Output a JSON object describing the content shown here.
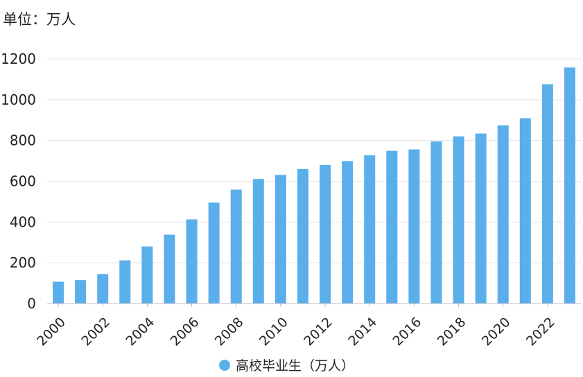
{
  "unit_label": "单位：万人",
  "chart_data": {
    "type": "bar",
    "categories": [
      "2000",
      "2001",
      "2002",
      "2003",
      "2004",
      "2005",
      "2006",
      "2007",
      "2008",
      "2009",
      "2010",
      "2011",
      "2012",
      "2013",
      "2014",
      "2015",
      "2016",
      "2017",
      "2018",
      "2019",
      "2020",
      "2021",
      "2022",
      "2023"
    ],
    "x_tick_labels": [
      "2000",
      "2002",
      "2004",
      "2006",
      "2008",
      "2010",
      "2012",
      "2014",
      "2016",
      "2018",
      "2020",
      "2022"
    ],
    "series": [
      {
        "name": "高校毕业生（万人）",
        "values": [
          107,
          115,
          145,
          212,
          280,
          338,
          413,
          495,
          559,
          611,
          631,
          660,
          680,
          699,
          727,
          749,
          756,
          795,
          820,
          834,
          874,
          909,
          1076,
          1158
        ],
        "color": "#5aafeb"
      }
    ],
    "ylim": [
      0,
      1200
    ],
    "y_ticks": [
      0,
      200,
      400,
      600,
      800,
      1000,
      1200
    ],
    "grid": true,
    "legend": "bottom-center"
  }
}
